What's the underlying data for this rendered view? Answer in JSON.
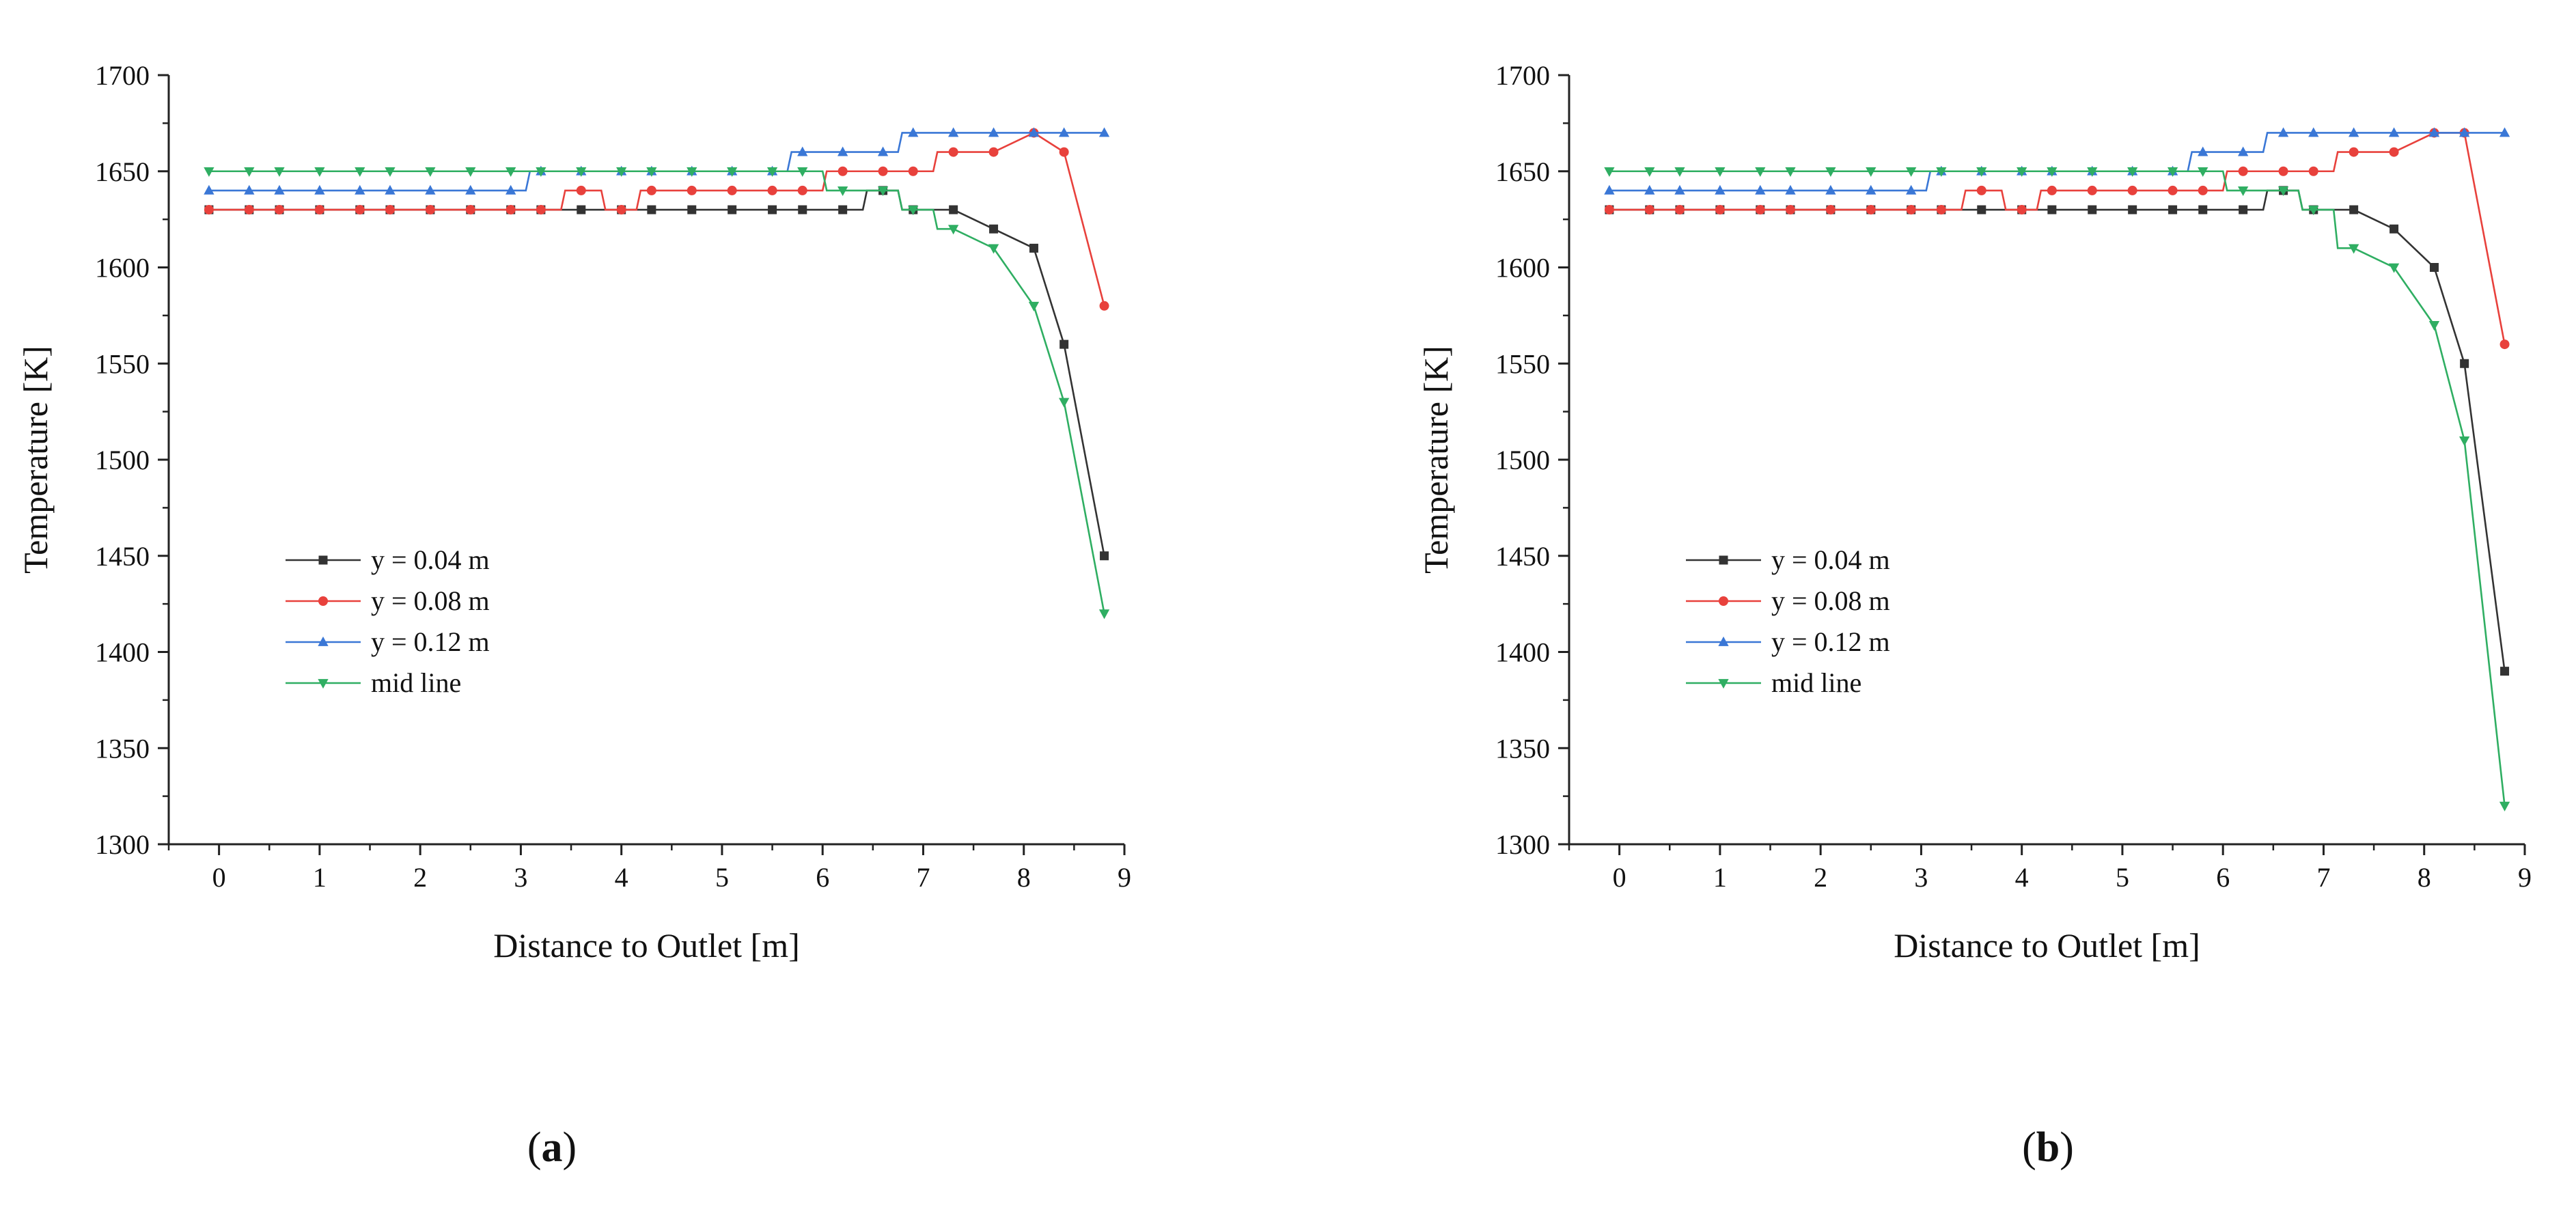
{
  "chart_data": [
    {
      "type": "line",
      "panel_label": "(a)",
      "panel_letter": "a",
      "xlabel": "Distance to Outlet [m]",
      "ylabel": "Temperature [K]",
      "xlim": [
        -0.5,
        9
      ],
      "ylim": [
        1300,
        1700
      ],
      "xticks": [
        0,
        1,
        2,
        3,
        4,
        5,
        6,
        7,
        8,
        9
      ],
      "yticks": [
        1300,
        1350,
        1400,
        1450,
        1500,
        1550,
        1600,
        1650,
        1700
      ],
      "legend_position": "lower-left",
      "series": [
        {
          "name": "y = 0.04 m",
          "color": "#333333",
          "marker": "square",
          "x": [
            -0.1,
            0.3,
            0.6,
            1.0,
            1.4,
            1.7,
            2.1,
            2.5,
            2.9,
            3.2,
            3.6,
            4.0,
            4.3,
            4.7,
            5.1,
            5.5,
            5.8,
            6.2,
            6.6,
            6.9,
            7.3,
            7.7,
            8.1,
            8.4,
            8.8
          ],
          "y": [
            1630,
            1630,
            1630,
            1630,
            1630,
            1630,
            1630,
            1630,
            1630,
            1630,
            1630,
            1630,
            1630,
            1630,
            1630,
            1630,
            1630,
            1630,
            1640,
            1630,
            1630,
            1620,
            1610,
            1560,
            1450
          ]
        },
        {
          "name": "y = 0.08 m",
          "color": "#e8413c",
          "marker": "circle",
          "x": [
            -0.1,
            0.3,
            0.6,
            1.0,
            1.4,
            1.7,
            2.1,
            2.5,
            2.9,
            3.2,
            3.6,
            4.0,
            4.3,
            4.7,
            5.1,
            5.5,
            5.8,
            6.2,
            6.6,
            6.9,
            7.3,
            7.7,
            8.1,
            8.4,
            8.8
          ],
          "y": [
            1630,
            1630,
            1630,
            1630,
            1630,
            1630,
            1630,
            1630,
            1630,
            1630,
            1640,
            1630,
            1640,
            1640,
            1640,
            1640,
            1640,
            1650,
            1650,
            1650,
            1660,
            1660,
            1670,
            1660,
            1580
          ]
        },
        {
          "name": "y = 0.12 m",
          "color": "#3a77d6",
          "marker": "triangle-up",
          "x": [
            -0.1,
            0.3,
            0.6,
            1.0,
            1.4,
            1.7,
            2.1,
            2.5,
            2.9,
            3.2,
            3.6,
            4.0,
            4.3,
            4.7,
            5.1,
            5.5,
            5.8,
            6.2,
            6.6,
            6.9,
            7.3,
            7.7,
            8.1,
            8.4,
            8.8
          ],
          "y": [
            1640,
            1640,
            1640,
            1640,
            1640,
            1640,
            1640,
            1640,
            1640,
            1650,
            1650,
            1650,
            1650,
            1650,
            1650,
            1650,
            1660,
            1660,
            1660,
            1670,
            1670,
            1670,
            1670,
            1670,
            1670
          ]
        },
        {
          "name": "mid line",
          "color": "#2fae62",
          "marker": "triangle-down",
          "x": [
            -0.1,
            0.3,
            0.6,
            1.0,
            1.4,
            1.7,
            2.1,
            2.5,
            2.9,
            3.2,
            3.6,
            4.0,
            4.3,
            4.7,
            5.1,
            5.5,
            5.8,
            6.2,
            6.6,
            6.9,
            7.3,
            7.7,
            8.1,
            8.4,
            8.8
          ],
          "y": [
            1650,
            1650,
            1650,
            1650,
            1650,
            1650,
            1650,
            1650,
            1650,
            1650,
            1650,
            1650,
            1650,
            1650,
            1650,
            1650,
            1650,
            1640,
            1640,
            1630,
            1620,
            1610,
            1580,
            1530,
            1420
          ]
        }
      ]
    },
    {
      "type": "line",
      "panel_label": "(b)",
      "panel_letter": "b",
      "xlabel": "Distance to Outlet [m]",
      "ylabel": "Temperature [K]",
      "xlim": [
        -0.5,
        9
      ],
      "ylim": [
        1300,
        1700
      ],
      "xticks": [
        0,
        1,
        2,
        3,
        4,
        5,
        6,
        7,
        8,
        9
      ],
      "yticks": [
        1300,
        1350,
        1400,
        1450,
        1500,
        1550,
        1600,
        1650,
        1700
      ],
      "legend_position": "lower-left",
      "series": [
        {
          "name": "y = 0.04 m",
          "color": "#333333",
          "marker": "square",
          "x": [
            -0.1,
            0.3,
            0.6,
            1.0,
            1.4,
            1.7,
            2.1,
            2.5,
            2.9,
            3.2,
            3.6,
            4.0,
            4.3,
            4.7,
            5.1,
            5.5,
            5.8,
            6.2,
            6.6,
            6.9,
            7.3,
            7.7,
            8.1,
            8.4,
            8.8
          ],
          "y": [
            1630,
            1630,
            1630,
            1630,
            1630,
            1630,
            1630,
            1630,
            1630,
            1630,
            1630,
            1630,
            1630,
            1630,
            1630,
            1630,
            1630,
            1630,
            1640,
            1630,
            1630,
            1620,
            1600,
            1550,
            1390
          ]
        },
        {
          "name": "y = 0.08 m",
          "color": "#e8413c",
          "marker": "circle",
          "x": [
            -0.1,
            0.3,
            0.6,
            1.0,
            1.4,
            1.7,
            2.1,
            2.5,
            2.9,
            3.2,
            3.6,
            4.0,
            4.3,
            4.7,
            5.1,
            5.5,
            5.8,
            6.2,
            6.6,
            6.9,
            7.3,
            7.7,
            8.1,
            8.4,
            8.8
          ],
          "y": [
            1630,
            1630,
            1630,
            1630,
            1630,
            1630,
            1630,
            1630,
            1630,
            1630,
            1640,
            1630,
            1640,
            1640,
            1640,
            1640,
            1640,
            1650,
            1650,
            1650,
            1660,
            1660,
            1670,
            1670,
            1560
          ]
        },
        {
          "name": "y = 0.12 m",
          "color": "#3a77d6",
          "marker": "triangle-up",
          "x": [
            -0.1,
            0.3,
            0.6,
            1.0,
            1.4,
            1.7,
            2.1,
            2.5,
            2.9,
            3.2,
            3.6,
            4.0,
            4.3,
            4.7,
            5.1,
            5.5,
            5.8,
            6.2,
            6.6,
            6.9,
            7.3,
            7.7,
            8.1,
            8.4,
            8.8
          ],
          "y": [
            1640,
            1640,
            1640,
            1640,
            1640,
            1640,
            1640,
            1640,
            1640,
            1650,
            1650,
            1650,
            1650,
            1650,
            1650,
            1650,
            1660,
            1660,
            1670,
            1670,
            1670,
            1670,
            1670,
            1670,
            1670
          ]
        },
        {
          "name": "mid line",
          "color": "#2fae62",
          "marker": "triangle-down",
          "x": [
            -0.1,
            0.3,
            0.6,
            1.0,
            1.4,
            1.7,
            2.1,
            2.5,
            2.9,
            3.2,
            3.6,
            4.0,
            4.3,
            4.7,
            5.1,
            5.5,
            5.8,
            6.2,
            6.6,
            6.9,
            7.3,
            7.7,
            8.1,
            8.4,
            8.8
          ],
          "y": [
            1650,
            1650,
            1650,
            1650,
            1650,
            1650,
            1650,
            1650,
            1650,
            1650,
            1650,
            1650,
            1650,
            1650,
            1650,
            1650,
            1650,
            1640,
            1640,
            1630,
            1610,
            1600,
            1570,
            1510,
            1320
          ]
        }
      ]
    }
  ]
}
